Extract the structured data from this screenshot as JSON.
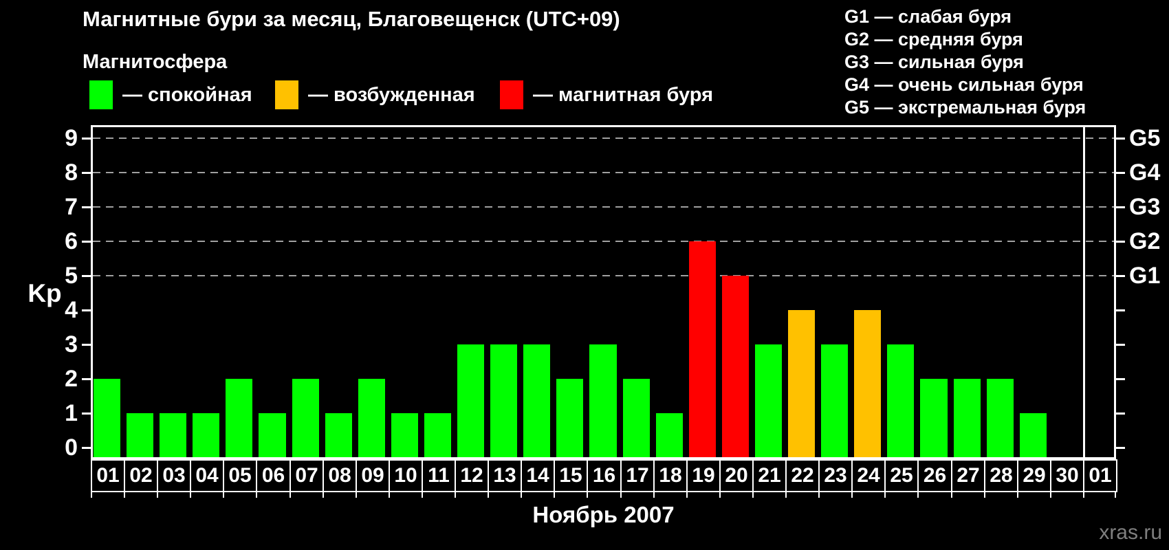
{
  "title": "Магнитные бури за месяц, Благовещенск (UTC+09)",
  "subtitle": "Магнитосфера",
  "legend": {
    "items": [
      {
        "label": "— спокойная",
        "status": "quiet",
        "color": "#00ff00"
      },
      {
        "label": "— возбужденная",
        "status": "excited",
        "color": "#ffc100"
      },
      {
        "label": "— магнитная буря",
        "status": "storm",
        "color": "#ff0000"
      }
    ]
  },
  "g_legend": [
    "G1 — слабая буря",
    "G2 — средняя буря",
    "G3 — сильная буря",
    "G4 — очень сильная буря",
    "G5 — экстремальная буря"
  ],
  "axis": {
    "kp_label": "Kp",
    "kp_ticks": [
      0,
      1,
      2,
      3,
      4,
      5,
      6,
      7,
      8,
      9
    ],
    "g_ticks": [
      {
        "kp": 5,
        "label": "G1"
      },
      {
        "kp": 6,
        "label": "G2"
      },
      {
        "kp": 7,
        "label": "G3"
      },
      {
        "kp": 8,
        "label": "G4"
      },
      {
        "kp": 9,
        "label": "G5"
      }
    ]
  },
  "month_caption": "Ноябрь 2007",
  "watermark": "xras.ru",
  "chart_data": {
    "type": "bar",
    "title": "Магнитные бури за месяц, Благовещенск (UTC+09)",
    "xlabel": "Ноябрь 2007",
    "ylabel": "Kp",
    "ylim": [
      0,
      9
    ],
    "grid": "dashed horizontal lines only at Kp 5-9 (G1-G5 levels)",
    "legend_position": "top-left",
    "categories": [
      "01",
      "02",
      "03",
      "04",
      "05",
      "06",
      "07",
      "08",
      "09",
      "10",
      "11",
      "12",
      "13",
      "14",
      "15",
      "16",
      "17",
      "18",
      "19",
      "20",
      "21",
      "22",
      "23",
      "24",
      "25",
      "26",
      "27",
      "28",
      "29",
      "30",
      "01"
    ],
    "values": [
      2,
      1,
      1,
      1,
      2,
      1,
      2,
      1,
      2,
      1,
      1,
      3,
      3,
      3,
      2,
      3,
      2,
      1,
      6,
      5,
      3,
      4,
      3,
      4,
      3,
      2,
      2,
      2,
      1,
      0,
      0
    ],
    "statuses": [
      "quiet",
      "quiet",
      "quiet",
      "quiet",
      "quiet",
      "quiet",
      "quiet",
      "quiet",
      "quiet",
      "quiet",
      "quiet",
      "quiet",
      "quiet",
      "quiet",
      "quiet",
      "quiet",
      "quiet",
      "quiet",
      "storm",
      "storm",
      "quiet",
      "excited",
      "quiet",
      "excited",
      "quiet",
      "quiet",
      "quiet",
      "quiet",
      "quiet",
      "none",
      "none"
    ],
    "colors": {
      "quiet": "#00ff00",
      "excited": "#ffc100",
      "storm": "#ff0000"
    },
    "next_month_start_index": 30
  }
}
